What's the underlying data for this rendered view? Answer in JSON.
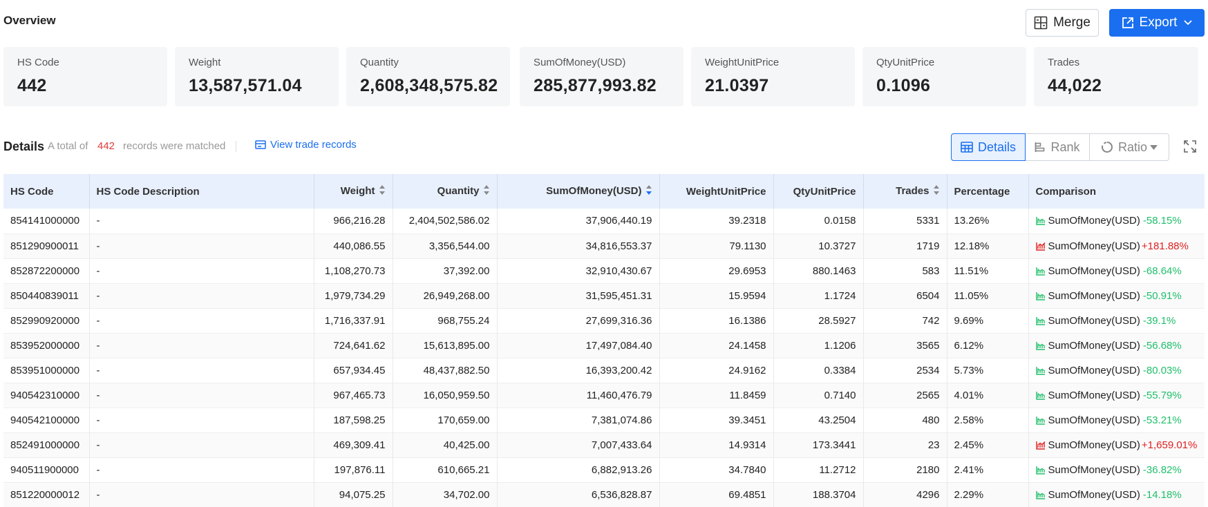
{
  "overview": {
    "title": "Overview",
    "merge_label": "Merge",
    "export_label": "Export",
    "cards": [
      {
        "label": "HS Code",
        "value": "442"
      },
      {
        "label": "Weight",
        "value": "13,587,571.04"
      },
      {
        "label": "Quantity",
        "value": "2,608,348,575.82"
      },
      {
        "label": "SumOfMoney(USD)",
        "value": "285,877,993.82"
      },
      {
        "label": "WeightUnitPrice",
        "value": "21.0397"
      },
      {
        "label": "QtyUnitPrice",
        "value": "0.1096"
      },
      {
        "label": "Trades",
        "value": "44,022"
      }
    ]
  },
  "details": {
    "title": "Details",
    "total_prefix": "A total of",
    "count": "442",
    "total_suffix": "records were matched",
    "view_link": "View trade records",
    "views": [
      "Details",
      "Rank",
      "Ratio"
    ]
  },
  "colors": {
    "accent": "#1a6ff0",
    "negative": "#1fbf6a",
    "positive": "#e02020",
    "header_bg": "#e8f0fd"
  },
  "table": {
    "headers": [
      "HS Code",
      "HS Code Description",
      "Weight",
      "Quantity",
      "SumOfMoney(USD)",
      "WeightUnitPrice",
      "QtyUnitPrice",
      "Trades",
      "Percentage",
      "Comparison"
    ],
    "rows": [
      {
        "code": "854141000000",
        "desc": "-",
        "weight": "966,216.28",
        "qty": "2,404,502,586.02",
        "money": "37,906,440.19",
        "wup": "39.2318",
        "qup": "0.0158",
        "trades": "5331",
        "pct": "13.26%",
        "cmp_label": "SumOfMoney(USD)",
        "cmp_value": "-58.15%",
        "trend": "down"
      },
      {
        "code": "851290900011",
        "desc": "-",
        "weight": "440,086.55",
        "qty": "3,356,544.00",
        "money": "34,816,553.37",
        "wup": "79.1130",
        "qup": "10.3727",
        "trades": "1719",
        "pct": "12.18%",
        "cmp_label": "SumOfMoney(USD)",
        "cmp_value": "+181.88%",
        "trend": "up"
      },
      {
        "code": "852872200000",
        "desc": "-",
        "weight": "1,108,270.73",
        "qty": "37,392.00",
        "money": "32,910,430.67",
        "wup": "29.6953",
        "qup": "880.1463",
        "trades": "583",
        "pct": "11.51%",
        "cmp_label": "SumOfMoney(USD)",
        "cmp_value": "-68.64%",
        "trend": "down"
      },
      {
        "code": "850440839011",
        "desc": "-",
        "weight": "1,979,734.29",
        "qty": "26,949,268.00",
        "money": "31,595,451.31",
        "wup": "15.9594",
        "qup": "1.1724",
        "trades": "6504",
        "pct": "11.05%",
        "cmp_label": "SumOfMoney(USD)",
        "cmp_value": "-50.91%",
        "trend": "down"
      },
      {
        "code": "852990920000",
        "desc": "-",
        "weight": "1,716,337.91",
        "qty": "968,755.24",
        "money": "27,699,316.36",
        "wup": "16.1386",
        "qup": "28.5927",
        "trades": "742",
        "pct": "9.69%",
        "cmp_label": "SumOfMoney(USD)",
        "cmp_value": "-39.1%",
        "trend": "down"
      },
      {
        "code": "853952000000",
        "desc": "-",
        "weight": "724,641.62",
        "qty": "15,613,895.00",
        "money": "17,497,084.40",
        "wup": "24.1458",
        "qup": "1.1206",
        "trades": "3565",
        "pct": "6.12%",
        "cmp_label": "SumOfMoney(USD)",
        "cmp_value": "-56.68%",
        "trend": "down"
      },
      {
        "code": "853951000000",
        "desc": "-",
        "weight": "657,934.45",
        "qty": "48,437,882.50",
        "money": "16,393,200.42",
        "wup": "24.9162",
        "qup": "0.3384",
        "trades": "2534",
        "pct": "5.73%",
        "cmp_label": "SumOfMoney(USD)",
        "cmp_value": "-80.03%",
        "trend": "down"
      },
      {
        "code": "940542310000",
        "desc": "-",
        "weight": "967,465.73",
        "qty": "16,050,959.50",
        "money": "11,460,476.79",
        "wup": "11.8459",
        "qup": "0.7140",
        "trades": "2565",
        "pct": "4.01%",
        "cmp_label": "SumOfMoney(USD)",
        "cmp_value": "-55.79%",
        "trend": "down"
      },
      {
        "code": "940542100000",
        "desc": "-",
        "weight": "187,598.25",
        "qty": "170,659.00",
        "money": "7,381,074.86",
        "wup": "39.3451",
        "qup": "43.2504",
        "trades": "480",
        "pct": "2.58%",
        "cmp_label": "SumOfMoney(USD)",
        "cmp_value": "-53.21%",
        "trend": "down"
      },
      {
        "code": "852491000000",
        "desc": "-",
        "weight": "469,309.41",
        "qty": "40,425.00",
        "money": "7,007,433.64",
        "wup": "14.9314",
        "qup": "173.3441",
        "trades": "23",
        "pct": "2.45%",
        "cmp_label": "SumOfMoney(USD)",
        "cmp_value": "+1,659.01%",
        "trend": "up"
      },
      {
        "code": "940511900000",
        "desc": "-",
        "weight": "197,876.11",
        "qty": "610,665.21",
        "money": "6,882,913.26",
        "wup": "34.7840",
        "qup": "11.2712",
        "trades": "2180",
        "pct": "2.41%",
        "cmp_label": "SumOfMoney(USD)",
        "cmp_value": "-36.82%",
        "trend": "down"
      },
      {
        "code": "851220000012",
        "desc": "-",
        "weight": "94,075.25",
        "qty": "34,702.00",
        "money": "6,536,828.87",
        "wup": "69.4851",
        "qup": "188.3704",
        "trades": "4296",
        "pct": "2.29%",
        "cmp_label": "SumOfMoney(USD)",
        "cmp_value": "-14.18%",
        "trend": "down"
      }
    ]
  }
}
